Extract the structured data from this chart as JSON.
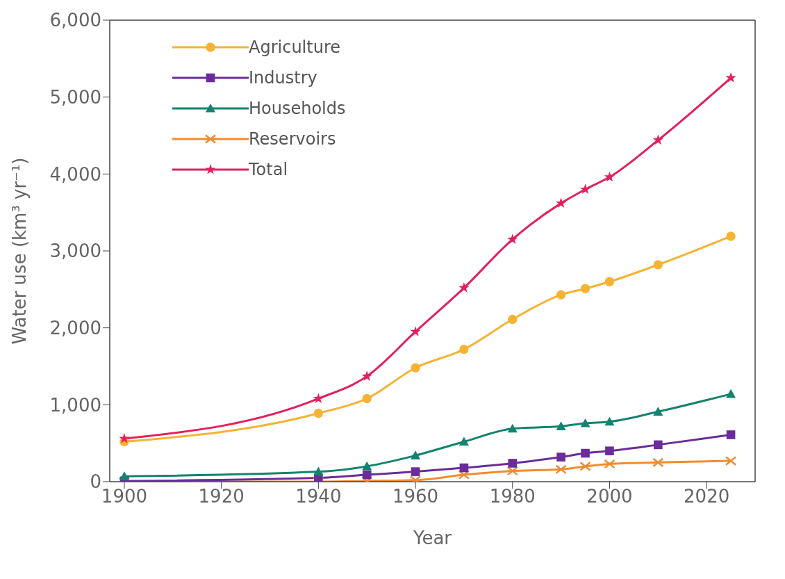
{
  "chart_data": {
    "type": "line",
    "xlabel": "Year",
    "ylabel": "Water use (km³ yr⁻¹)",
    "x": [
      1900,
      1940,
      1950,
      1960,
      1970,
      1980,
      1990,
      1995,
      2000,
      2010,
      2025
    ],
    "xlim": [
      1897,
      2030
    ],
    "xticks": [
      1900,
      1920,
      1940,
      1960,
      1980,
      2000,
      2020
    ],
    "ylim": [
      0,
      6000
    ],
    "yticks": [
      {
        "value": 0,
        "label": "0"
      },
      {
        "value": 1000,
        "label": "1,000"
      },
      {
        "value": 2000,
        "label": "2,000"
      },
      {
        "value": 3000,
        "label": "3,000"
      },
      {
        "value": 4000,
        "label": "4,000"
      },
      {
        "value": 5000,
        "label": "5,000"
      },
      {
        "value": 6000,
        "label": "6,000"
      }
    ],
    "grid": false,
    "legend": "top left",
    "series": [
      {
        "name": "Agriculture",
        "color": "#f5b335",
        "marker": "circle",
        "values": [
          520,
          890,
          1080,
          1480,
          1720,
          2110,
          2430,
          2510,
          2600,
          2820,
          3190
        ]
      },
      {
        "name": "Industry",
        "color": "#6a2c9a",
        "marker": "square",
        "values": [
          10,
          50,
          90,
          130,
          180,
          240,
          320,
          370,
          400,
          480,
          610
        ]
      },
      {
        "name": "Households",
        "color": "#12836e",
        "marker": "triangle",
        "values": [
          70,
          130,
          200,
          340,
          520,
          690,
          720,
          760,
          780,
          910,
          1140
        ]
      },
      {
        "name": "Reservoirs",
        "color": "#f28b30",
        "marker": "cross",
        "values": [
          0,
          0,
          10,
          20,
          90,
          140,
          160,
          200,
          230,
          250,
          270
        ]
      },
      {
        "name": "Total",
        "color": "#e3205d",
        "marker": "star",
        "values": [
          560,
          1080,
          1370,
          1950,
          2520,
          3150,
          3620,
          3800,
          3960,
          4440,
          5250
        ]
      }
    ]
  }
}
